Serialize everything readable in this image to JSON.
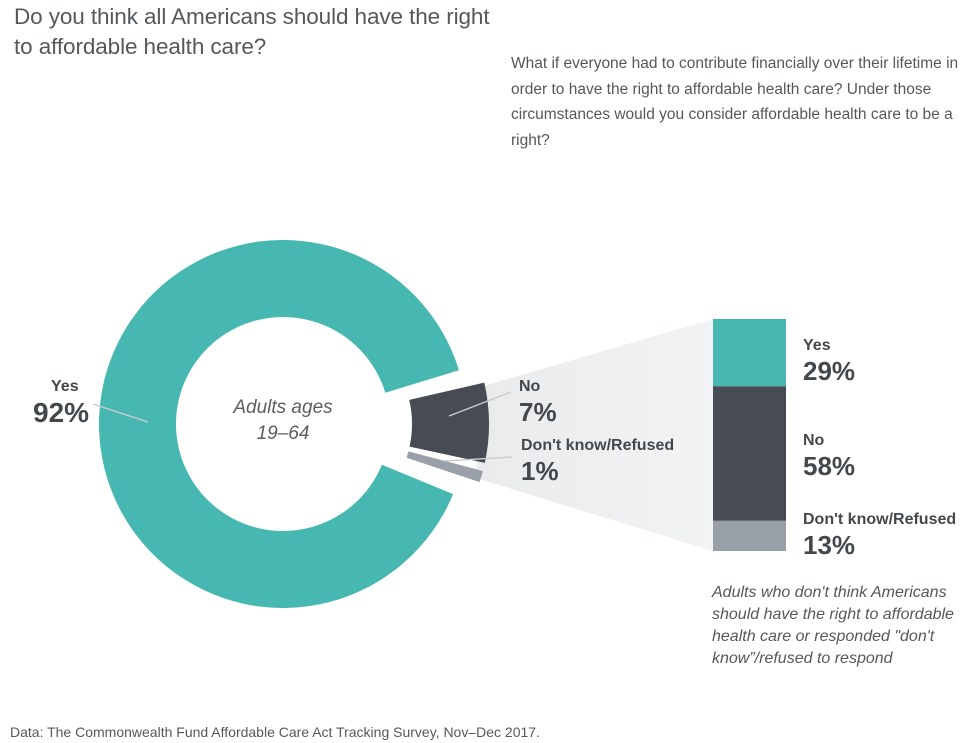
{
  "page": {
    "title": "Do you think all Americans should have the right to affordable health care?",
    "followup_question": "What if everyone had to contribute financially over their lifetime in order to have the right to affordable health care? Under those circumstances would you consider affordable health care to be a right?",
    "source_note": "Data: The Commonwealth Fund Affordable Care Act Tracking Survey, Nov–Dec 2017."
  },
  "colors": {
    "teal": "#47b8b1",
    "dark_slate": "#474c54",
    "gray": "#9aa0a7",
    "leader_line": "#c9cbcd",
    "funnel_left": "#e9ebec",
    "funnel_right": "#f2f3f4",
    "text_dark": "#43484d",
    "text_body": "#54585c"
  },
  "chart_data": [
    {
      "type": "pie",
      "subtype": "donut",
      "question": "Do you think all Americans should have the right to affordable health care?",
      "population_label": "Adults ages 19–64",
      "center_label_lines": [
        "Adults ages",
        "19–64"
      ],
      "legend_position": "callout-labels",
      "slices": [
        {
          "label": "Yes",
          "value": 92,
          "display": "92%",
          "color": "#47b8b1"
        },
        {
          "label": "No",
          "value": 7,
          "display": "7%",
          "color": "#474c54"
        },
        {
          "label": "Don't know/Refused",
          "value": 1,
          "display": "1%",
          "color": "#9aa0a7"
        }
      ]
    },
    {
      "type": "bar",
      "subtype": "stacked-column",
      "description": "Breakout of the 8% who said No or Don't know/Refused, asked the follow-up question",
      "note": "Adults who don't think Americans should have the right to affordable health care or responded \"don't know”/refused to respond",
      "ylim": [
        0,
        100
      ],
      "segments": [
        {
          "label": "Yes",
          "value": 29,
          "display": "29%",
          "color": "#47b8b1"
        },
        {
          "label": "No",
          "value": 58,
          "display": "58%",
          "color": "#474c54"
        },
        {
          "label": "Don't know/Refused",
          "value": 13,
          "display": "13%",
          "color": "#9aa0a7"
        }
      ]
    }
  ]
}
